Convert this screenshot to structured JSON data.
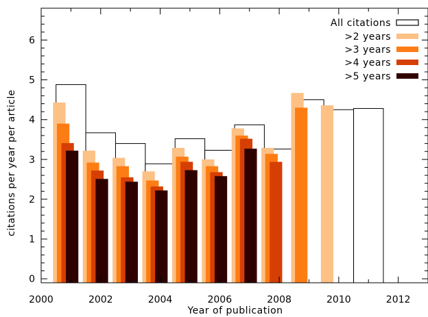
{
  "chart_data": {
    "type": "bar",
    "xlabel": "Year of publication",
    "ylabel": "citations per year per article",
    "xlim": [
      2000,
      2013
    ],
    "ylim": [
      -0.1,
      6.8
    ],
    "x_ticks": [
      "2000",
      "2002",
      "2004",
      "2006",
      "2008",
      "2010",
      "2012"
    ],
    "y_ticks": [
      "0",
      "1",
      "2",
      "3",
      "4",
      "5",
      "6"
    ],
    "grid": false,
    "legend_position": "top-right",
    "years": [
      2001,
      2002,
      2003,
      2004,
      2005,
      2006,
      2007,
      2008,
      2009,
      2010,
      2011
    ],
    "series": [
      {
        "name": "All citations",
        "color": "#ffffff",
        "outline": "#000000",
        "values": [
          4.88,
          3.67,
          3.4,
          2.89,
          3.52,
          3.23,
          3.87,
          3.26,
          4.5,
          4.25,
          4.28
        ]
      },
      {
        "name": ">2 years",
        "color": "#fdc085",
        "values": [
          4.43,
          3.22,
          3.04,
          2.7,
          3.29,
          3.0,
          3.78,
          3.29,
          4.67,
          4.36,
          null
        ]
      },
      {
        "name": ">3 years",
        "color": "#fd7d15",
        "values": [
          3.9,
          2.92,
          2.83,
          2.47,
          3.07,
          2.83,
          3.6,
          3.14,
          4.3,
          null,
          null
        ]
      },
      {
        "name": ">4 years",
        "color": "#d63f03",
        "values": [
          3.41,
          2.72,
          2.55,
          2.32,
          2.94,
          2.68,
          3.52,
          2.94,
          null,
          null,
          null
        ]
      },
      {
        "name": ">5 years",
        "color": "#2e0000",
        "values": [
          3.22,
          2.51,
          2.44,
          2.22,
          2.73,
          2.58,
          3.27,
          null,
          null,
          null,
          null
        ]
      }
    ]
  }
}
